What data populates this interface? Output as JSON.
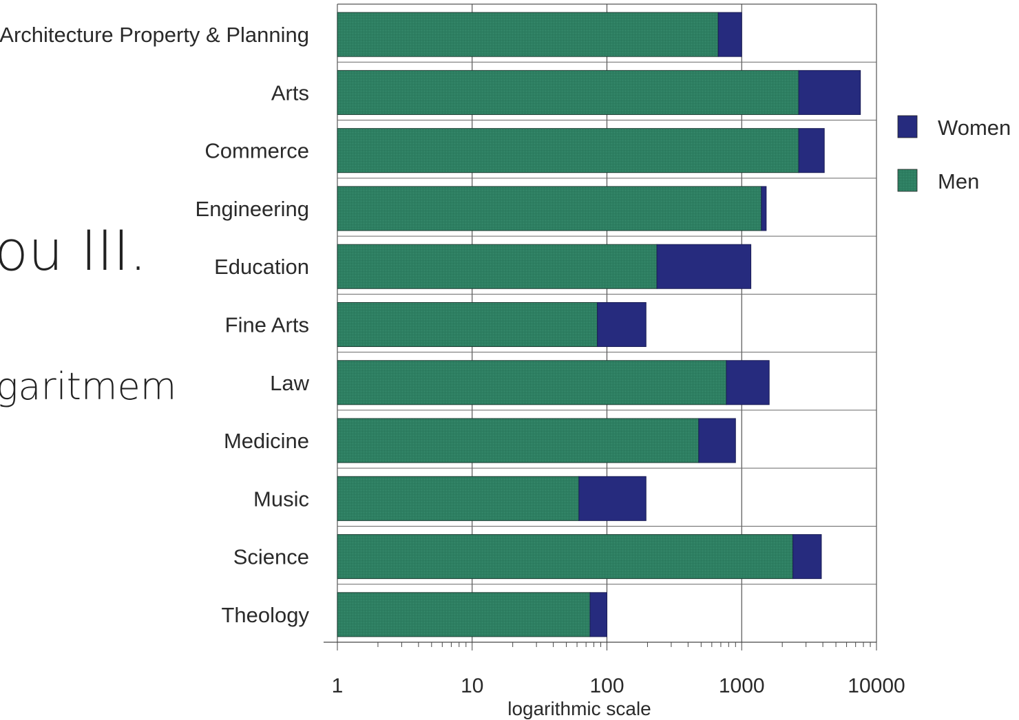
{
  "slide": {
    "title_fragment": "ou III.",
    "body_fragment": "garitmem"
  },
  "chart_data": {
    "type": "bar",
    "orientation": "horizontal",
    "stacked": true,
    "xscale": "log",
    "xlim": [
      1,
      10000
    ],
    "xticks": [
      1,
      10,
      100,
      1000,
      10000
    ],
    "xtick_labels": [
      "1",
      "10",
      "100",
      "1000",
      "10000"
    ],
    "xlabel": "logarithmic scale",
    "grid": "vertical at decades",
    "legend_position": "right",
    "categories": [
      "Architecture Property & Planning",
      "Arts",
      "Commerce",
      "Engineering",
      "Education",
      "Fine Arts",
      "Law",
      "Medicine",
      "Music",
      "Science",
      "Theology"
    ],
    "series": [
      {
        "name": "Men",
        "color": "#2e7f62",
        "values": [
          670,
          2650,
          2650,
          1400,
          235,
          85,
          770,
          480,
          62,
          2400,
          75
        ]
      },
      {
        "name": "Women",
        "color": "#262b7e",
        "totals": [
          1000,
          7600,
          4100,
          1520,
          1170,
          195,
          1600,
          900,
          195,
          3900,
          100
        ]
      }
    ],
    "legend": [
      {
        "label": "Women",
        "color": "#262b7e"
      },
      {
        "label": "Men",
        "color": "#2e7f62"
      }
    ]
  }
}
